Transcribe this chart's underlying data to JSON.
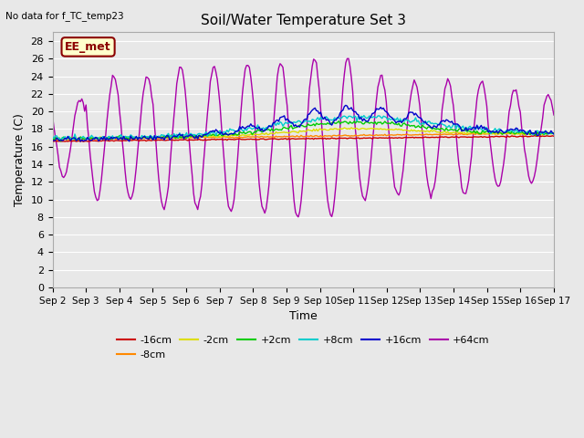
{
  "title": "Soil/Water Temperature Set 3",
  "subtitle": "No data for f_TC_temp23",
  "xlabel": "Time",
  "ylabel": "Temperature (C)",
  "annotation": "EE_met",
  "ylim": [
    0,
    29
  ],
  "yticks": [
    0,
    2,
    4,
    6,
    8,
    10,
    12,
    14,
    16,
    18,
    20,
    22,
    24,
    26,
    28
  ],
  "series_colors": {
    "-16cm": "#cc0000",
    "-8cm": "#ff8800",
    "-2cm": "#dddd00",
    "+2cm": "#00cc00",
    "+8cm": "#00cccc",
    "+16cm": "#0000cc",
    "+64cm": "#aa00aa"
  },
  "bg_color": "#e8e8e8",
  "plot_bg": "#e8e8e8",
  "grid_color": "white",
  "annotation_bg": "#ffffcc",
  "annotation_border": "#8B0000",
  "title_fontsize": 11,
  "label_fontsize": 9,
  "tick_fontsize": 8,
  "legend_fontsize": 8
}
